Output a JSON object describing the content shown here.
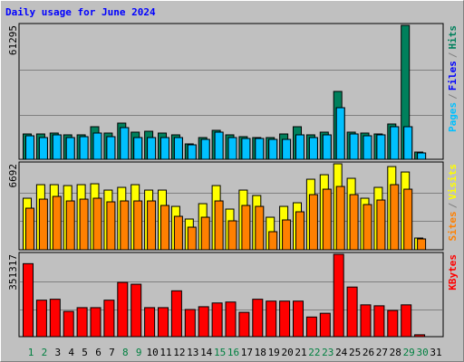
{
  "title": "Daily usage for June 2024",
  "legend_separator": "/",
  "chart_data": [
    {
      "type": "bar",
      "ylim": [
        0,
        61295
      ],
      "yticks": [
        61295
      ],
      "grid_divisions": 3,
      "series": [
        {
          "name": "Pages",
          "color": "#00c0ff",
          "values": [
            10760,
            9940,
            11180,
            9940,
            10350,
            12010,
            10350,
            14490,
            9940,
            9940,
            9940,
            9940,
            6620,
            9110,
            12420,
            9940,
            9520,
            9520,
            9110,
            9110,
            11180,
            9940,
            11180,
            23600,
            11590,
            10760,
            11180,
            14900,
            14900,
            2900,
            null
          ]
        },
        {
          "name": "Files",
          "color": "#0000ff",
          "values": [
            10760,
            9940,
            11180,
            9940,
            10350,
            12010,
            10350,
            14490,
            9940,
            9940,
            9940,
            9940,
            6620,
            9110,
            12420,
            9940,
            9520,
            9520,
            9110,
            9110,
            11180,
            9940,
            11180,
            23600,
            11590,
            10760,
            11180,
            14900,
            14900,
            2900,
            null
          ]
        },
        {
          "name": "Hits",
          "color": "#00805c",
          "values": [
            11590,
            11590,
            12010,
            11180,
            11180,
            14900,
            12010,
            16560,
            12420,
            12830,
            12010,
            11180,
            7040,
            9940,
            13250,
            11180,
            10350,
            9940,
            9940,
            11590,
            14900,
            11180,
            12420,
            31050,
            12420,
            12010,
            11590,
            16150,
            61295,
            3310,
            null
          ]
        }
      ]
    },
    {
      "type": "bar",
      "ylim": [
        0,
        6692
      ],
      "yticks": [
        6692
      ],
      "grid_divisions": 3,
      "series": [
        {
          "name": "Sites",
          "color": "#ff8000",
          "values": [
            3238,
            3942,
            4154,
            3802,
            3942,
            4013,
            3731,
            3802,
            3802,
            3802,
            3450,
            2605,
            1760,
            2534,
            3802,
            2253,
            3450,
            3379,
            1408,
            2323,
            2957,
            4294,
            4717,
            4928,
            4294,
            3520,
            3872,
            5069,
            4717,
            845,
            null
          ]
        },
        {
          "name": "Visits",
          "color": "#ffff00",
          "values": [
            4013,
            5069,
            5069,
            4998,
            5069,
            5139,
            4646,
            4858,
            5069,
            4646,
            4646,
            3379,
            2394,
            3590,
            4998,
            3168,
            4646,
            4224,
            2534,
            3379,
            3661,
            5491,
            5843,
            6692,
            5562,
            4013,
            4858,
            6477,
            6054,
            915,
            null
          ]
        }
      ]
    },
    {
      "type": "bar",
      "ylim": [
        0,
        351317
      ],
      "yticks": [
        351317
      ],
      "grid_divisions": 3,
      "categories": [
        "1",
        "2",
        "3",
        "4",
        "5",
        "6",
        "7",
        "8",
        "9",
        "10",
        "11",
        "12",
        "13",
        "14",
        "15",
        "16",
        "17",
        "18",
        "19",
        "20",
        "21",
        "22",
        "23",
        "24",
        "25",
        "26",
        "27",
        "28",
        "29",
        "30",
        "31"
      ],
      "category_label_colors": [
        "#008040",
        "#008040",
        "#000000",
        "#000000",
        "#000000",
        "#000000",
        "#000000",
        "#008040",
        "#008040",
        "#000000",
        "#000000",
        "#000000",
        "#000000",
        "#000000",
        "#008040",
        "#008040",
        "#000000",
        "#000000",
        "#000000",
        "#000000",
        "#000000",
        "#008040",
        "#008040",
        "#000000",
        "#000000",
        "#000000",
        "#000000",
        "#000000",
        "#008040",
        "#008040",
        "#000000"
      ],
      "series": [
        {
          "name": "KBytes",
          "color": "#ff0000",
          "values": [
            311400,
            155700,
            159700,
            107800,
            123800,
            123800,
            155700,
            231500,
            223600,
            123800,
            123800,
            195600,
            115800,
            127700,
            143700,
            147700,
            103800,
            159700,
            151700,
            151700,
            151700,
            83800,
            99800,
            351317,
            211600,
            135700,
            131700,
            111800,
            135700,
            8000,
            null
          ]
        }
      ]
    }
  ]
}
